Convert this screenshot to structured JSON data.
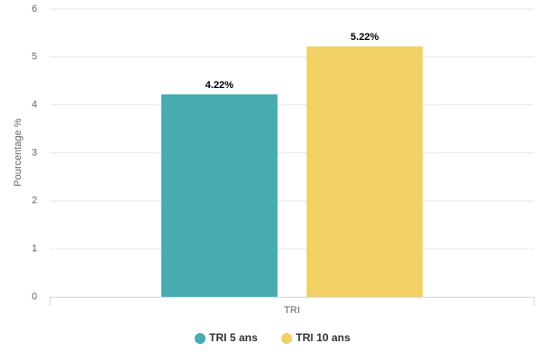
{
  "chart_data": {
    "type": "bar",
    "categories": [
      "TRI"
    ],
    "series": [
      {
        "name": "TRI 5 ans",
        "color": "#47abb0",
        "values": [
          4.22
        ],
        "value_labels": [
          "4.22%"
        ]
      },
      {
        "name": "TRI 10 ans",
        "color": "#f1d065",
        "values": [
          5.22
        ],
        "value_labels": [
          "5.22%"
        ]
      }
    ],
    "y_label": "Pourcentage %",
    "ylim": [
      0,
      6
    ],
    "yticks": [
      0,
      1,
      2,
      3,
      4,
      5,
      6
    ],
    "grid": true,
    "legend": "bottom"
  }
}
